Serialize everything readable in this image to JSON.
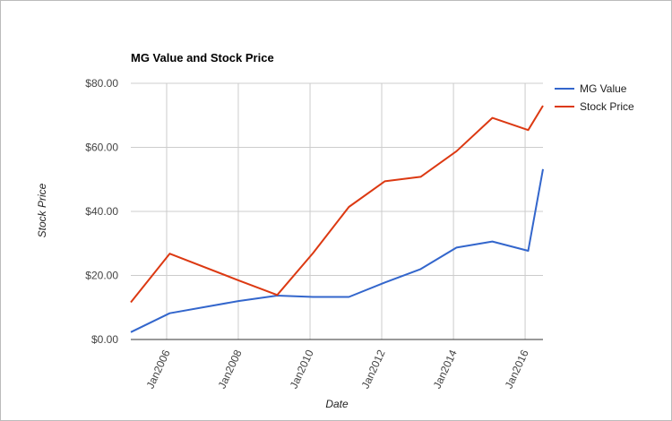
{
  "chart_data": {
    "type": "line",
    "title": "MG Value and Stock Price",
    "xlabel": "Date",
    "ylabel": "Stock Price",
    "x_tick_labels": [
      "Jan2006",
      "Jan2008",
      "Jan2010",
      "Jan2012",
      "Jan2014",
      "Jan2016"
    ],
    "y_tick_labels": [
      "$0.00",
      "$20.00",
      "$40.00",
      "$60.00",
      "$80.00"
    ],
    "ylim": [
      0,
      80
    ],
    "xlim": [
      "2005-01-01",
      "2016-07-01"
    ],
    "grid": true,
    "legend_position": "right",
    "series": [
      {
        "name": "MG Value",
        "color": "#3366cc",
        "points": [
          {
            "x": "2005-01-01",
            "y": 2.3
          },
          {
            "x": "2006-02-01",
            "y": 8.2
          },
          {
            "x": "2008-01-01",
            "y": 12.0
          },
          {
            "x": "2009-02-01",
            "y": 13.7
          },
          {
            "x": "2010-02-01",
            "y": 13.3
          },
          {
            "x": "2011-02-01",
            "y": 13.3
          },
          {
            "x": "2012-02-01",
            "y": 17.8
          },
          {
            "x": "2013-02-01",
            "y": 22.0
          },
          {
            "x": "2014-02-01",
            "y": 28.7
          },
          {
            "x": "2015-02-01",
            "y": 30.6
          },
          {
            "x": "2016-02-01",
            "y": 27.7
          },
          {
            "x": "2016-07-01",
            "y": 53.2
          }
        ]
      },
      {
        "name": "Stock Price",
        "color": "#dc3912",
        "points": [
          {
            "x": "2005-01-01",
            "y": 11.6
          },
          {
            "x": "2006-02-01",
            "y": 26.8
          },
          {
            "x": "2008-01-01",
            "y": 18.5
          },
          {
            "x": "2009-02-01",
            "y": 13.9
          },
          {
            "x": "2010-02-01",
            "y": 27.0
          },
          {
            "x": "2011-02-01",
            "y": 41.4
          },
          {
            "x": "2012-02-01",
            "y": 49.4
          },
          {
            "x": "2013-02-01",
            "y": 50.8
          },
          {
            "x": "2014-02-01",
            "y": 58.8
          },
          {
            "x": "2015-02-01",
            "y": 69.2
          },
          {
            "x": "2016-02-01",
            "y": 65.4
          },
          {
            "x": "2016-07-01",
            "y": 73.0
          }
        ]
      }
    ]
  }
}
